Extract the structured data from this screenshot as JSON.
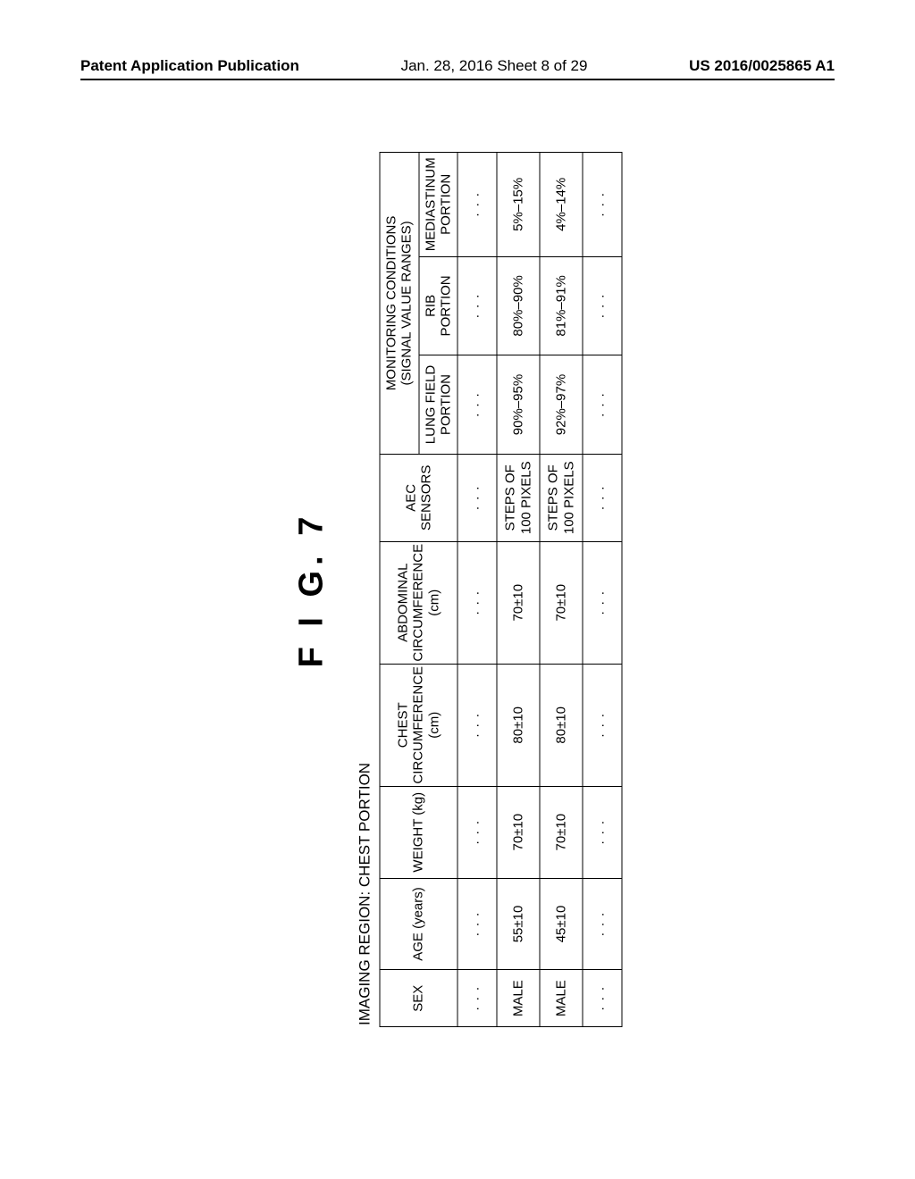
{
  "header": {
    "left": "Patent Application Publication",
    "center": "Jan. 28, 2016  Sheet 8 of 29",
    "right": "US 2016/0025865 A1"
  },
  "figure": {
    "title": "F I G.  7",
    "region_label": "IMAGING REGION: CHEST PORTION",
    "columns": {
      "sex": "SEX",
      "age": "AGE (years)",
      "weight": "WEIGHT (kg)",
      "chest": "CHEST\nCIRCUMFERENCE\n(cm)",
      "abdominal": "ABDOMINAL\nCIRCUMFERENCE\n(cm)",
      "aec": "AEC\nSENSORS",
      "monitoring_group": "MONITORING CONDITIONS\n(SIGNAL VALUE RANGES)",
      "lung": "LUNG FIELD\nPORTION",
      "rib": "RIB\nPORTION",
      "mediastinum": "MEDIASTINUM\nPORTION"
    },
    "dots": "· · ·",
    "rows": [
      {
        "sex": "MALE",
        "age": "55±10",
        "weight": "70±10",
        "chest": "80±10",
        "abdominal": "70±10",
        "aec": "STEPS OF\n100 PIXELS",
        "lung": "90%–95%",
        "rib": "80%–90%",
        "mediastinum": "5%–15%"
      },
      {
        "sex": "MALE",
        "age": "45±10",
        "weight": "70±10",
        "chest": "80±10",
        "abdominal": "70±10",
        "aec": "STEPS OF\n100 PIXELS",
        "lung": "92%–97%",
        "rib": "81%–91%",
        "mediastinum": "4%–14%"
      }
    ],
    "table_style": {
      "border_color": "#000000",
      "border_width": 1.5,
      "background_color": "#ffffff",
      "font_size": 15,
      "title_fontsize": 38,
      "region_fontsize": 17
    }
  }
}
